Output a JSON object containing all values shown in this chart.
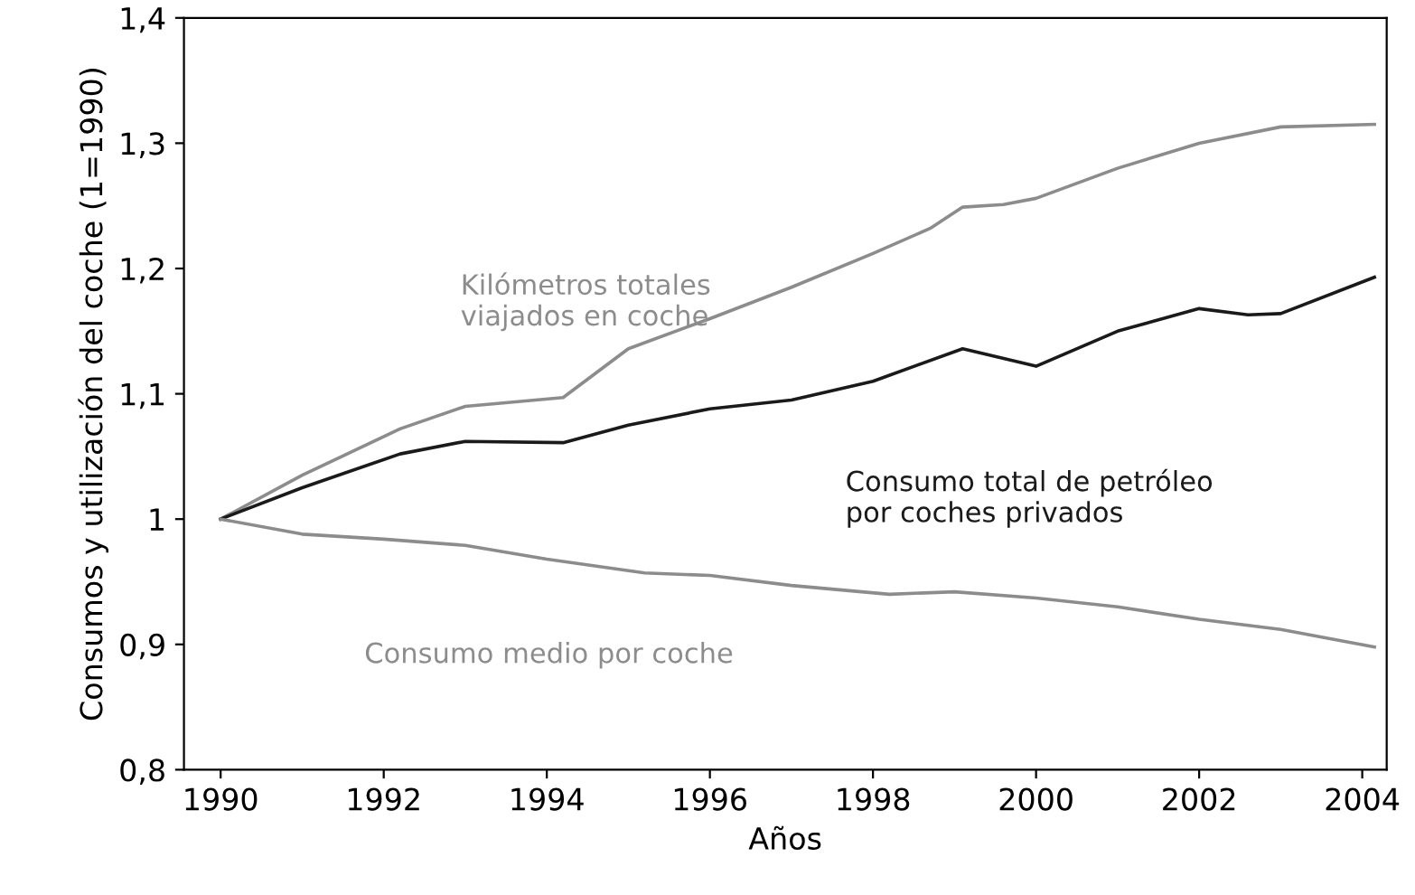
{
  "chart_data": {
    "type": "line",
    "xlabel": "Años",
    "ylabel": "Consumos y utilización del coche (1=1990)",
    "xlim": [
      1989.55,
      2004.3
    ],
    "ylim": [
      0.8,
      1.4
    ],
    "xticks": [
      1990,
      1992,
      1994,
      1996,
      1998,
      2000,
      2002,
      2004
    ],
    "yticks": [
      {
        "value": 0.8,
        "label": "0,8"
      },
      {
        "value": 0.9,
        "label": "0,9"
      },
      1,
      {
        "value": 1.1,
        "label": "1,1"
      },
      {
        "value": 1.2,
        "label": "1,2"
      },
      {
        "value": 1.3,
        "label": "1,3"
      },
      {
        "value": 1.4,
        "label": "1,4"
      }
    ],
    "grid": false,
    "legend": false,
    "marker": "none",
    "line_style": "solid",
    "series": [
      {
        "name": "Kilómetros totales\nviajados en coche",
        "color": "#8c8c8c",
        "x": [
          1990,
          1991,
          1992.2,
          1993,
          1994.2,
          1995,
          1996,
          1997,
          1998,
          1998.7,
          1999.1,
          1999.6,
          2000,
          2001,
          2002,
          2003,
          2004.15
        ],
        "values": [
          1.0,
          1.035,
          1.072,
          1.09,
          1.097,
          1.136,
          1.16,
          1.185,
          1.212,
          1.232,
          1.249,
          1.251,
          1.256,
          1.28,
          1.3,
          1.313,
          1.315
        ]
      },
      {
        "name": "Consumo total de petróleo\npor coches privados",
        "color": "#1a1a1a",
        "x": [
          1990,
          1991,
          1992.2,
          1993,
          1994.2,
          1995,
          1996,
          1997,
          1998,
          1999.1,
          2000,
          2001,
          2002,
          2002.6,
          2003,
          2004.15
        ],
        "values": [
          1.0,
          1.025,
          1.052,
          1.062,
          1.061,
          1.075,
          1.088,
          1.095,
          1.11,
          1.136,
          1.122,
          1.15,
          1.168,
          1.163,
          1.164,
          1.193
        ]
      },
      {
        "name": "Consumo medio por coche",
        "color": "#8c8c8c",
        "x": [
          1990,
          1991,
          1992,
          1993,
          1994,
          1995.2,
          1996,
          1997,
          1998.2,
          1999,
          2000,
          2001,
          2002,
          2003,
          2004.15
        ],
        "values": [
          1.0,
          0.988,
          0.984,
          0.979,
          0.968,
          0.957,
          0.955,
          0.947,
          0.94,
          0.942,
          0.937,
          0.93,
          0.92,
          0.912,
          0.898
        ]
      }
    ]
  }
}
